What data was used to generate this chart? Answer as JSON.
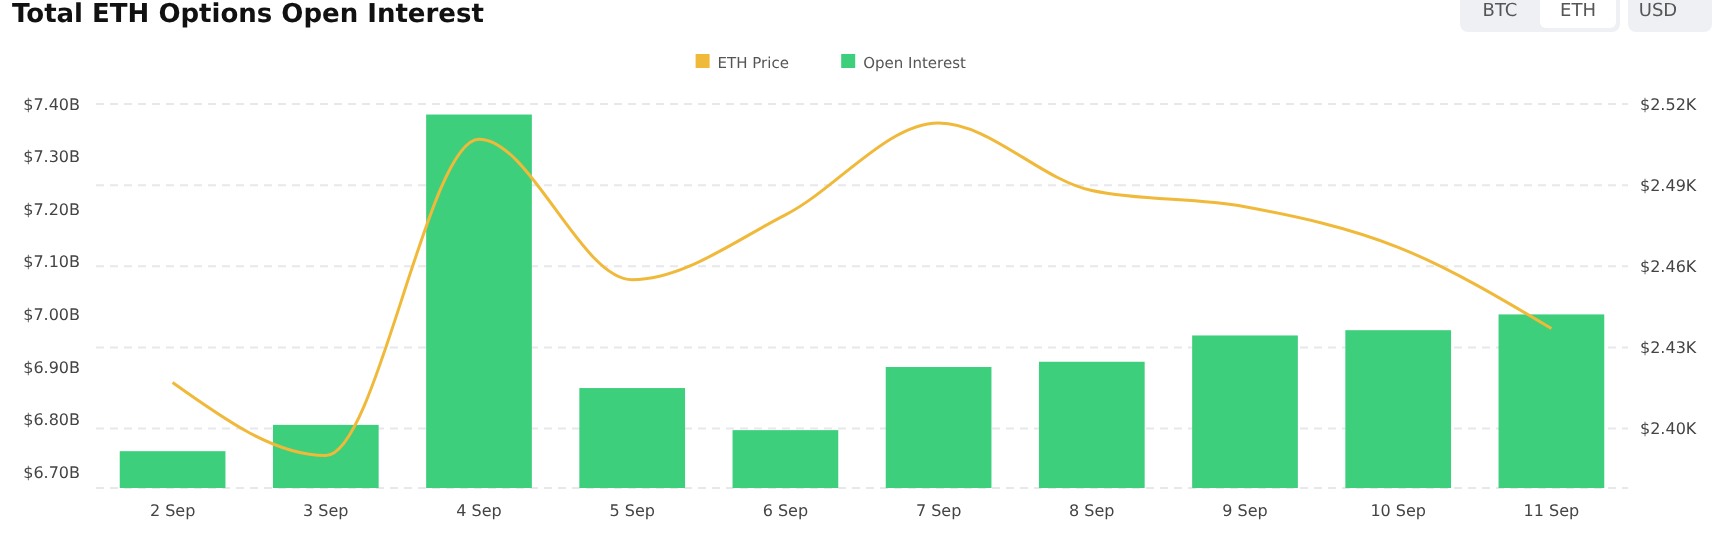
{
  "chart_data": {
    "type": "bar",
    "title": "Total ETH Options Open Interest",
    "categories": [
      "2 Sep",
      "3 Sep",
      "4 Sep",
      "5 Sep",
      "6 Sep",
      "7 Sep",
      "8 Sep",
      "9 Sep",
      "10 Sep",
      "11 Sep"
    ],
    "series": [
      {
        "name": "ETH Price",
        "type": "line",
        "axis": "y2",
        "color": "#f0b93a",
        "values": [
          2.417,
          2.39,
          2.507,
          2.455,
          2.479,
          2.513,
          2.488,
          2.482,
          2.467,
          2.437
        ]
      },
      {
        "name": "Open Interest",
        "color": "#3ecf7c",
        "values": [
          6.74,
          6.79,
          7.38,
          6.86,
          6.78,
          6.9,
          6.91,
          6.96,
          6.97,
          7.0
        ]
      }
    ],
    "ylim": [
      6.67,
      7.4
    ],
    "yticks": [
      {
        "value": 6.7,
        "label": "$6.70B"
      },
      {
        "value": 6.8,
        "label": "$6.80B"
      },
      {
        "value": 6.9,
        "label": "$6.90B"
      },
      {
        "value": 7.0,
        "label": "$7.00B"
      },
      {
        "value": 7.1,
        "label": "$7.10B"
      },
      {
        "value": 7.2,
        "label": "$7.20B"
      },
      {
        "value": 7.3,
        "label": "$7.30B"
      },
      {
        "value": 7.4,
        "label": "$7.40B"
      }
    ],
    "y2lim": [
      2.378,
      2.52
    ],
    "y2ticks": [
      {
        "value": 2.4,
        "label": "$2.40K"
      },
      {
        "value": 2.43,
        "label": "$2.43K"
      },
      {
        "value": 2.46,
        "label": "$2.46K"
      },
      {
        "value": 2.49,
        "label": "$2.49K"
      },
      {
        "value": 2.52,
        "label": "$2.52K"
      }
    ],
    "grid": "y2",
    "legend": "top",
    "annotations": [
      "BTC",
      "ETH",
      "USD"
    ]
  }
}
